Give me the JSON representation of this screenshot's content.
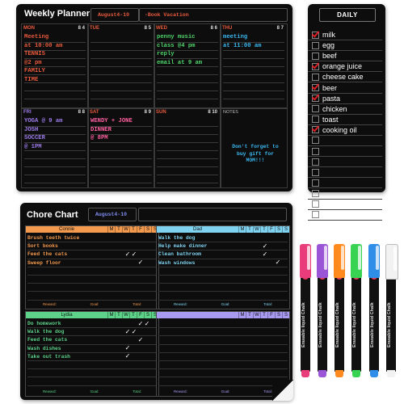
{
  "weekly": {
    "title": "Weekly Planner",
    "date_range": "August4-10",
    "event": "-Book Vacation",
    "days": [
      {
        "name": "MON",
        "date": "8 4",
        "color": "#e85a3c",
        "entries": [
          "Meeting",
          "at 10:00 am",
          "TENNIS",
          "@2 pm",
          "FAMILY",
          "TIME"
        ]
      },
      {
        "name": "TUE",
        "date": "8 5",
        "color": "#e85a3c",
        "entries": []
      },
      {
        "name": "WED",
        "date": "8 6",
        "color": "#e85a3c",
        "entries": [
          "penny music",
          "class @4 pm",
          "reply",
          "email at 9 am"
        ],
        "entry_color": "#4fd36b"
      },
      {
        "name": "THU",
        "date": "8 7",
        "color": "#e85a3c",
        "entries": [
          "meeting",
          "at 11:00 am"
        ],
        "entry_color": "#3ab8f0"
      },
      {
        "name": "FRI",
        "date": "8 8",
        "color": "#9b7be8",
        "entries": [
          "YOGA @ 9 am",
          "JOSH",
          "SOCCER",
          "@ 1PM"
        ],
        "entry_color": "#9b7be8"
      },
      {
        "name": "SAT",
        "date": "8 9",
        "color": "#e85a3c",
        "entries": [
          "WENDY + JONE",
          "DINNER",
          "@ 8PM"
        ],
        "entry_color": "#ff5fa0"
      },
      {
        "name": "SUN",
        "date": "8 10",
        "color": "#e85a3c",
        "entries": []
      }
    ],
    "notes_label": "NOTES",
    "note": "Don't forget to buy gift for MOM!!!"
  },
  "daily": {
    "title": "DAILY",
    "items": [
      {
        "text": "milk",
        "checked": true
      },
      {
        "text": "egg",
        "checked": false
      },
      {
        "text": "beef",
        "checked": false
      },
      {
        "text": "orange juice",
        "checked": true
      },
      {
        "text": "cheese cake",
        "checked": false
      },
      {
        "text": "beer",
        "checked": true
      },
      {
        "text": "pasta",
        "checked": true
      },
      {
        "text": "chicken",
        "checked": false
      },
      {
        "text": "toast",
        "checked": false
      },
      {
        "text": "cooking oil",
        "checked": true
      }
    ],
    "empty_rows": 8
  },
  "chore": {
    "title": "Chore Chart",
    "date_range": "August4-10",
    "day_letters": [
      "M",
      "T",
      "W",
      "T",
      "F",
      "S",
      "S"
    ],
    "reward_label": "Reward:",
    "goal_label": "Goal:",
    "total_label": "Total:",
    "people": [
      {
        "name": "Connie",
        "color": "#f39a4e",
        "tasks": [
          {
            "task": "Brush teeth twice",
            "marks": [
              0,
              0,
              0,
              0,
              0,
              0,
              0
            ]
          },
          {
            "task": "Sort books",
            "marks": [
              0,
              0,
              0,
              0,
              0,
              0,
              0
            ]
          },
          {
            "task": "Feed the cats",
            "marks": [
              0,
              0,
              1,
              1,
              0,
              0,
              0
            ]
          },
          {
            "task": "Sweep floor",
            "marks": [
              0,
              0,
              0,
              0,
              1,
              0,
              0
            ]
          }
        ]
      },
      {
        "name": "Dad",
        "color": "#7fd3f0",
        "tasks": [
          {
            "task": "Walk the dog",
            "marks": [
              0,
              0,
              0,
              0,
              0,
              0,
              0
            ]
          },
          {
            "task": "Help make dinner",
            "marks": [
              0,
              0,
              0,
              1,
              0,
              0,
              0
            ]
          },
          {
            "task": "Clean bathroom",
            "marks": [
              0,
              0,
              0,
              1,
              0,
              0,
              0
            ]
          },
          {
            "task": "Wash windows",
            "marks": [
              0,
              0,
              0,
              0,
              0,
              1,
              0
            ]
          }
        ]
      },
      {
        "name": "Lydia",
        "color": "#5dd38a",
        "tasks": [
          {
            "task": "Do homework",
            "marks": [
              0,
              0,
              0,
              0,
              1,
              1,
              0
            ]
          },
          {
            "task": "Walk the dog",
            "marks": [
              0,
              0,
              1,
              1,
              0,
              0,
              0
            ]
          },
          {
            "task": "Feed the cats",
            "marks": [
              0,
              0,
              0,
              0,
              1,
              0,
              0
            ]
          },
          {
            "task": "Wash dishes",
            "marks": [
              0,
              0,
              1,
              0,
              0,
              0,
              0
            ]
          },
          {
            "task": "Take out trash",
            "marks": [
              0,
              0,
              1,
              0,
              0,
              0,
              0
            ]
          }
        ]
      },
      {
        "name": "",
        "color": "#a79af0",
        "tasks": []
      }
    ]
  },
  "markers": [
    {
      "color": "#e83d7a",
      "label": "Erasable liquid Chalk"
    },
    {
      "color": "#9a54d6",
      "label": "Erasable liquid Chalk"
    },
    {
      "color": "#ff8a1e",
      "label": "Erasable liquid Chalk"
    },
    {
      "color": "#39d353",
      "label": "Erasable liquid Chalk"
    },
    {
      "color": "#2f8fe8",
      "label": "Erasable liquid Chalk"
    },
    {
      "color": "#f2f2f2",
      "label": "Erasable liquid Chalk"
    }
  ]
}
